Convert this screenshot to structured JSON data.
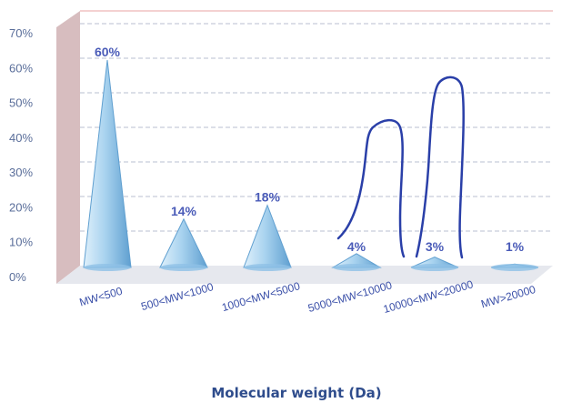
{
  "chart_data": {
    "type": "bar",
    "categories": [
      "MW<500",
      "500<MW<1000",
      "1000<MW<5000",
      "5000<MW<10000",
      "10000<MW<20000",
      "MW>20000"
    ],
    "values": [
      60,
      14,
      18,
      4,
      3,
      1
    ],
    "data_labels": [
      "60%",
      "14%",
      "18%",
      "4%",
      "3%",
      "1%"
    ],
    "y_ticks": [
      "0%",
      "10%",
      "20%",
      "30%",
      "40%",
      "50%",
      "60%",
      "70%"
    ],
    "ylim": [
      0,
      70
    ],
    "xlabel": "Molecular weight (Da)",
    "grid": true,
    "bar_shape": "cone",
    "colors": {
      "cone": "#a9d3ef",
      "cone_edge": "#5f9fd0",
      "wall": "#c9a7aa",
      "label": "#4a5bb8",
      "title": "#2e4c8c",
      "annotation": "#2a3fa8"
    }
  }
}
